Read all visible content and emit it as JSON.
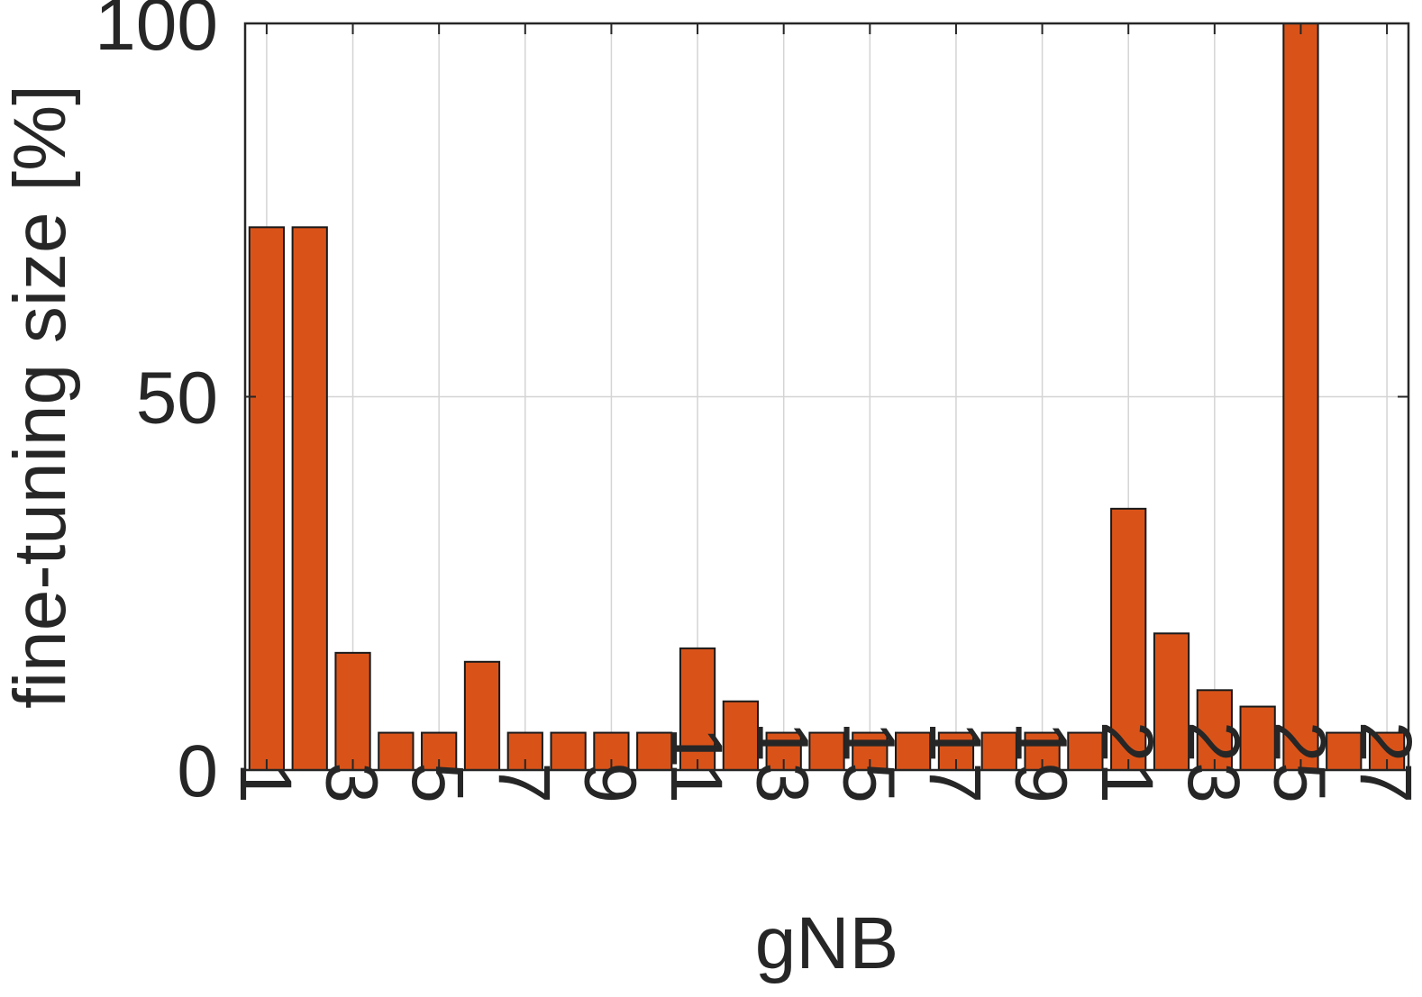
{
  "chart_data": {
    "type": "bar",
    "title": "",
    "xlabel": "gNB",
    "ylabel": "fine-tuning size [%]",
    "categories": [
      1,
      2,
      3,
      4,
      5,
      6,
      7,
      8,
      9,
      10,
      11,
      12,
      13,
      14,
      15,
      16,
      17,
      18,
      19,
      20,
      21,
      22,
      23,
      24,
      25,
      26,
      27
    ],
    "values": [
      72.7,
      72.7,
      15.7,
      5.0,
      5.0,
      14.5,
      5.0,
      5.0,
      5.0,
      5.0,
      16.3,
      9.2,
      5.0,
      5.0,
      5.0,
      5.0,
      5.0,
      5.0,
      5.0,
      5.0,
      35.0,
      18.3,
      10.7,
      8.5,
      100.0,
      5.0,
      5.0
    ],
    "xticks": [
      "1",
      "3",
      "5",
      "7",
      "9",
      "11",
      "13",
      "15",
      "17",
      "19",
      "21",
      "23",
      "25",
      "27"
    ],
    "yticks": [
      "0",
      "50",
      "100"
    ],
    "ylim": [
      0,
      100
    ],
    "grid": true,
    "bar_color": "#D95319",
    "edge_color": "#1a1a1a"
  }
}
